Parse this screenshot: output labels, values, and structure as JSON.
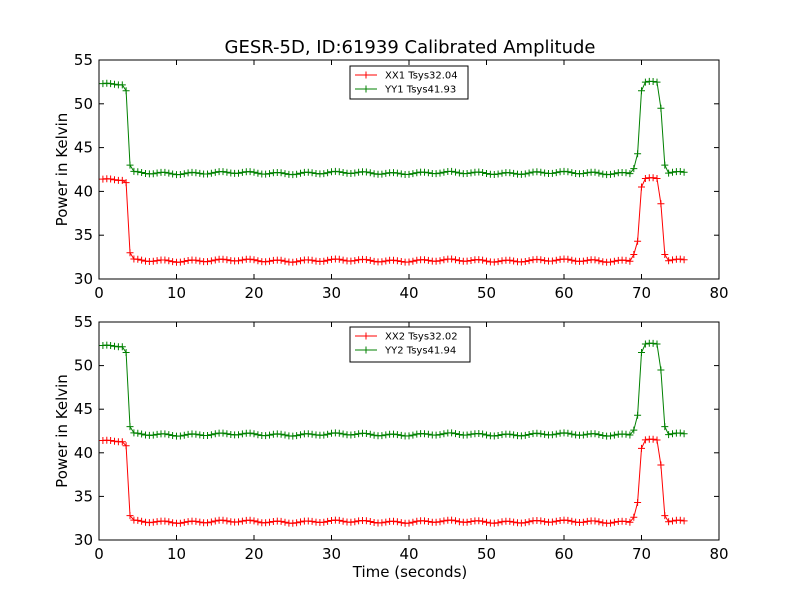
{
  "figure": {
    "title": "GESR-5D, ID:61939 Calibrated Amplitude",
    "background": "#ffffff"
  },
  "chart_data": [
    {
      "type": "line",
      "title": "GESR-5D, ID:61939 Calibrated Amplitude",
      "xlabel": "",
      "ylabel": "Power in Kelvin",
      "xlim": [
        0,
        80
      ],
      "ylim": [
        30,
        55
      ],
      "xticks": [
        0,
        10,
        20,
        30,
        40,
        50,
        60,
        70,
        80
      ],
      "yticks": [
        30,
        35,
        40,
        45,
        50,
        55
      ],
      "grid": false,
      "legend_position": "top-center",
      "marker": "+",
      "sample_interval_s": 0.5,
      "series": [
        {
          "name": "XX1 Tsys32.04",
          "color": "#ff0000",
          "segments": [
            {
              "x_start": 0.5,
              "x_end": 3.0,
              "y": 41.3
            },
            {
              "x": 3.5,
              "y": 41.0
            },
            {
              "x": 4.0,
              "y": 33.0
            },
            {
              "x_start": 4.5,
              "x_end": 68.5,
              "y": 32.1
            },
            {
              "x": 69.0,
              "y": 32.8
            },
            {
              "x": 69.5,
              "y": 34.3
            },
            {
              "x": 70.0,
              "y": 40.5
            },
            {
              "x_start": 70.5,
              "x_end": 72.0,
              "y": 41.4
            },
            {
              "x": 72.5,
              "y": 38.6
            },
            {
              "x": 73.0,
              "y": 32.8
            },
            {
              "x_start": 73.5,
              "x_end": 75.5,
              "y": 32.1
            }
          ]
        },
        {
          "name": "YY1 Tsys41.93",
          "color": "#008000",
          "segments": [
            {
              "x_start": 0.5,
              "x_end": 3.0,
              "y": 52.2
            },
            {
              "x": 3.5,
              "y": 51.5
            },
            {
              "x": 4.0,
              "y": 43.0
            },
            {
              "x_start": 4.5,
              "x_end": 68.5,
              "y": 42.1
            },
            {
              "x": 69.0,
              "y": 42.6
            },
            {
              "x": 69.5,
              "y": 44.3
            },
            {
              "x": 70.0,
              "y": 51.5
            },
            {
              "x_start": 70.5,
              "x_end": 72.0,
              "y": 52.4
            },
            {
              "x": 72.5,
              "y": 49.5
            },
            {
              "x": 73.0,
              "y": 43.0
            },
            {
              "x_start": 73.5,
              "x_end": 75.5,
              "y": 42.1
            }
          ]
        }
      ]
    },
    {
      "type": "line",
      "title": "",
      "xlabel": "Time (seconds)",
      "ylabel": "Power in Kelvin",
      "xlim": [
        0,
        80
      ],
      "ylim": [
        30,
        55
      ],
      "xticks": [
        0,
        10,
        20,
        30,
        40,
        50,
        60,
        70,
        80
      ],
      "yticks": [
        30,
        35,
        40,
        45,
        50,
        55
      ],
      "grid": false,
      "legend_position": "top-center",
      "marker": "+",
      "sample_interval_s": 0.5,
      "series": [
        {
          "name": "XX2 Tsys32.02",
          "color": "#ff0000",
          "segments": [
            {
              "x_start": 0.5,
              "x_end": 3.0,
              "y": 41.3
            },
            {
              "x": 3.5,
              "y": 40.8
            },
            {
              "x": 4.0,
              "y": 32.8
            },
            {
              "x_start": 4.5,
              "x_end": 68.5,
              "y": 32.1
            },
            {
              "x": 69.0,
              "y": 32.6
            },
            {
              "x": 69.5,
              "y": 34.3
            },
            {
              "x": 70.0,
              "y": 40.5
            },
            {
              "x_start": 70.5,
              "x_end": 72.0,
              "y": 41.4
            },
            {
              "x": 72.5,
              "y": 38.6
            },
            {
              "x": 73.0,
              "y": 32.8
            },
            {
              "x_start": 73.5,
              "x_end": 75.5,
              "y": 32.1
            }
          ]
        },
        {
          "name": "YY2 Tsys41.94",
          "color": "#008000",
          "segments": [
            {
              "x_start": 0.5,
              "x_end": 3.0,
              "y": 52.2
            },
            {
              "x": 3.5,
              "y": 51.5
            },
            {
              "x": 4.0,
              "y": 43.0
            },
            {
              "x_start": 4.5,
              "x_end": 68.5,
              "y": 42.1
            },
            {
              "x": 69.0,
              "y": 42.6
            },
            {
              "x": 69.5,
              "y": 44.3
            },
            {
              "x": 70.0,
              "y": 51.5
            },
            {
              "x_start": 70.5,
              "x_end": 72.0,
              "y": 52.4
            },
            {
              "x": 72.5,
              "y": 49.5
            },
            {
              "x": 73.0,
              "y": 43.0
            },
            {
              "x_start": 73.5,
              "x_end": 75.5,
              "y": 42.1
            }
          ]
        }
      ]
    }
  ]
}
